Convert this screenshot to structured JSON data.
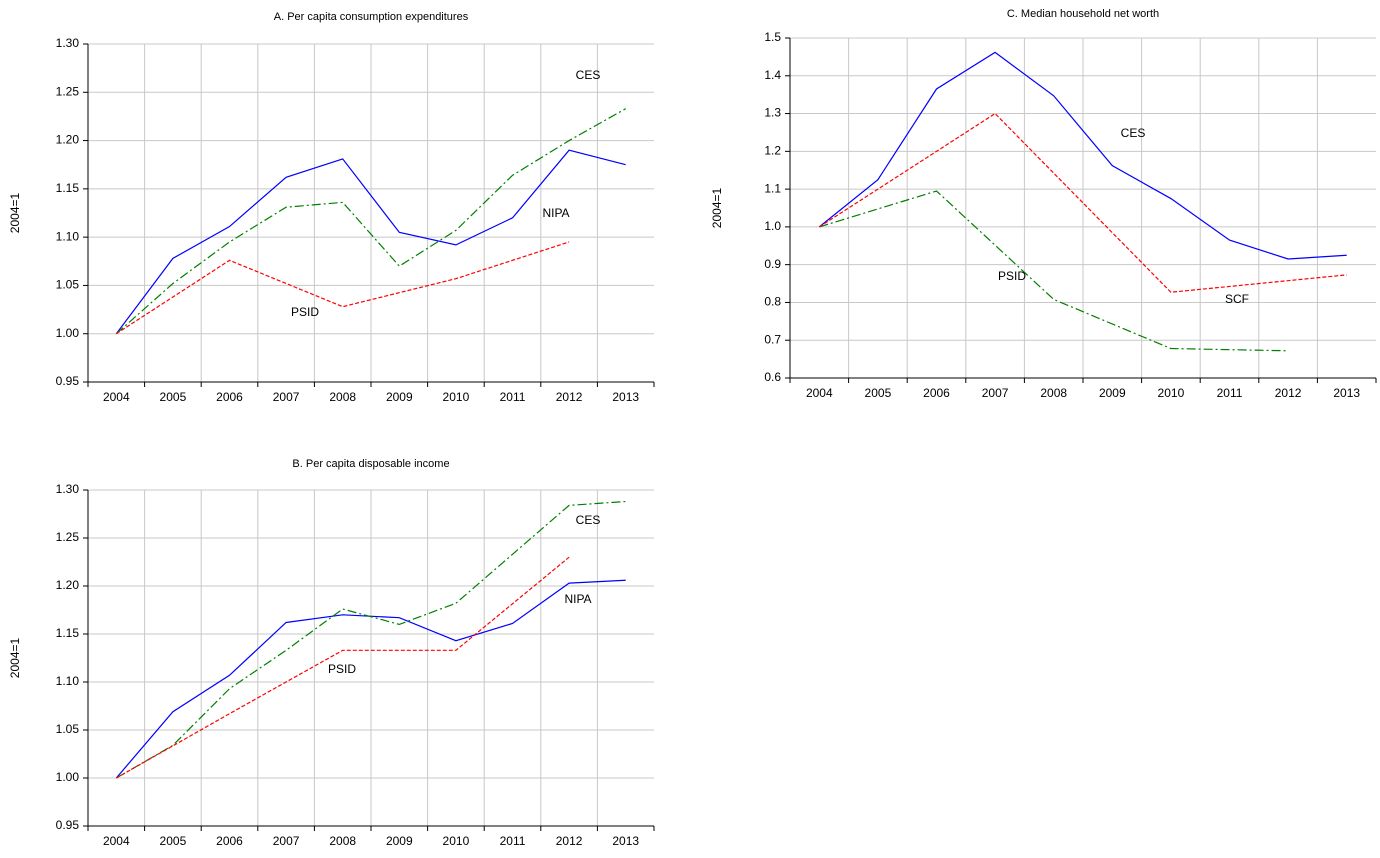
{
  "chart_data": [
    {
      "type": "line",
      "title": "A. Per capita consumption expenditures",
      "y_label": "2004=1",
      "xlim": [
        2003.5,
        2013.5
      ],
      "xticks": [
        2004,
        2005,
        2006,
        2007,
        2008,
        2009,
        2010,
        2011,
        2012,
        2013
      ],
      "ylim": [
        0.95,
        1.3
      ],
      "yticks": [
        0.95,
        {
          "value": 1.0,
          "label": "1.00"
        },
        1.05,
        {
          "value": 1.1,
          "label": "1.10"
        },
        1.15,
        {
          "value": 1.2,
          "label": "1.20"
        },
        1.25,
        {
          "value": 1.3,
          "label": "1.30"
        }
      ],
      "grid": true,
      "series": [
        {
          "name": "CES",
          "color": "#0000ff",
          "line_style": "solid",
          "x": [
            2004,
            2005,
            2006,
            2007,
            2008,
            2009,
            2010,
            2011,
            2012,
            2013
          ],
          "values": [
            1.0,
            1.078,
            1.111,
            1.162,
            1.181,
            1.105,
            1.092,
            1.12,
            1.19,
            1.175
          ]
        },
        {
          "name": "NIPA",
          "color": "#008000",
          "line_style": "long-dash",
          "x": [
            2004,
            2005,
            2006,
            2007,
            2008,
            2009,
            2010,
            2011,
            2012,
            2013
          ],
          "values": [
            1.0,
            1.052,
            1.095,
            1.131,
            1.136,
            1.07,
            1.107,
            1.164,
            1.2,
            1.233
          ]
        },
        {
          "name": "PSID",
          "color": "#ff0000",
          "line_style": "short-dash",
          "x": [
            2004,
            2006,
            2008,
            2010,
            2012
          ],
          "values": [
            1.0,
            1.076,
            1.028,
            1.057,
            1.095
          ]
        }
      ]
    },
    {
      "type": "line",
      "title": "C. Median household net worth",
      "y_label": "2004=1",
      "xlim": [
        2003.5,
        2013.5
      ],
      "xticks": [
        2004,
        2005,
        2006,
        2007,
        2008,
        2009,
        2010,
        2011,
        2012,
        2013
      ],
      "ylim": [
        0.6,
        1.5
      ],
      "yticks": [
        0.6,
        0.7,
        0.8,
        0.9,
        {
          "value": 1.0,
          "label": "1.0"
        },
        1.1,
        1.2,
        1.3,
        1.4,
        1.5
      ],
      "grid": true,
      "series": [
        {
          "name": "CES",
          "color": "#0000ff",
          "line_style": "solid",
          "x": [
            2004,
            2005,
            2006,
            2007,
            2008,
            2009,
            2010,
            2011,
            2012,
            2013
          ],
          "values": [
            1.0,
            1.125,
            1.365,
            1.462,
            1.347,
            1.162,
            1.075,
            0.965,
            0.915,
            0.925
          ]
        },
        {
          "name": "PSID",
          "color": "#008000",
          "line_style": "long-dash",
          "x": [
            2004,
            2006,
            2008,
            2010,
            2012
          ],
          "values": [
            1.0,
            1.095,
            0.808,
            0.678,
            0.672
          ]
        },
        {
          "name": "SCF",
          "color": "#ff0000",
          "line_style": "short-dash",
          "x": [
            2004,
            2007,
            2010,
            2013
          ],
          "values": [
            1.0,
            1.3,
            0.827,
            0.873
          ]
        }
      ]
    },
    {
      "type": "line",
      "title": "B. Per capita disposable income",
      "y_label": "2004=1",
      "xlim": [
        2003.5,
        2013.5
      ],
      "xticks": [
        2004,
        2005,
        2006,
        2007,
        2008,
        2009,
        2010,
        2011,
        2012,
        2013
      ],
      "ylim": [
        0.95,
        1.3
      ],
      "yticks": [
        0.95,
        {
          "value": 1.0,
          "label": "1.00"
        },
        1.05,
        {
          "value": 1.1,
          "label": "1.10"
        },
        1.15,
        {
          "value": 1.2,
          "label": "1.20"
        },
        1.25,
        {
          "value": 1.3,
          "label": "1.30"
        }
      ],
      "grid": true,
      "series": [
        {
          "name": "CES",
          "color": "#0000ff",
          "line_style": "solid",
          "x": [
            2004,
            2005,
            2006,
            2007,
            2008,
            2009,
            2010,
            2011,
            2012,
            2013
          ],
          "values": [
            1.0,
            1.069,
            1.107,
            1.162,
            1.17,
            1.167,
            1.143,
            1.161,
            1.203,
            1.206
          ]
        },
        {
          "name": "NIPA",
          "color": "#008000",
          "line_style": "long-dash",
          "x": [
            2004,
            2005,
            2006,
            2007,
            2008,
            2009,
            2010,
            2011,
            2012,
            2013
          ],
          "values": [
            1.0,
            1.034,
            1.093,
            1.133,
            1.176,
            1.16,
            1.182,
            1.233,
            1.284,
            1.288
          ]
        },
        {
          "name": "PSID",
          "color": "#ff0000",
          "line_style": "short-dash",
          "x": [
            2004,
            2006,
            2008,
            2010,
            2012
          ],
          "values": [
            1.0,
            1.067,
            1.133,
            1.133,
            1.23
          ]
        }
      ]
    }
  ]
}
